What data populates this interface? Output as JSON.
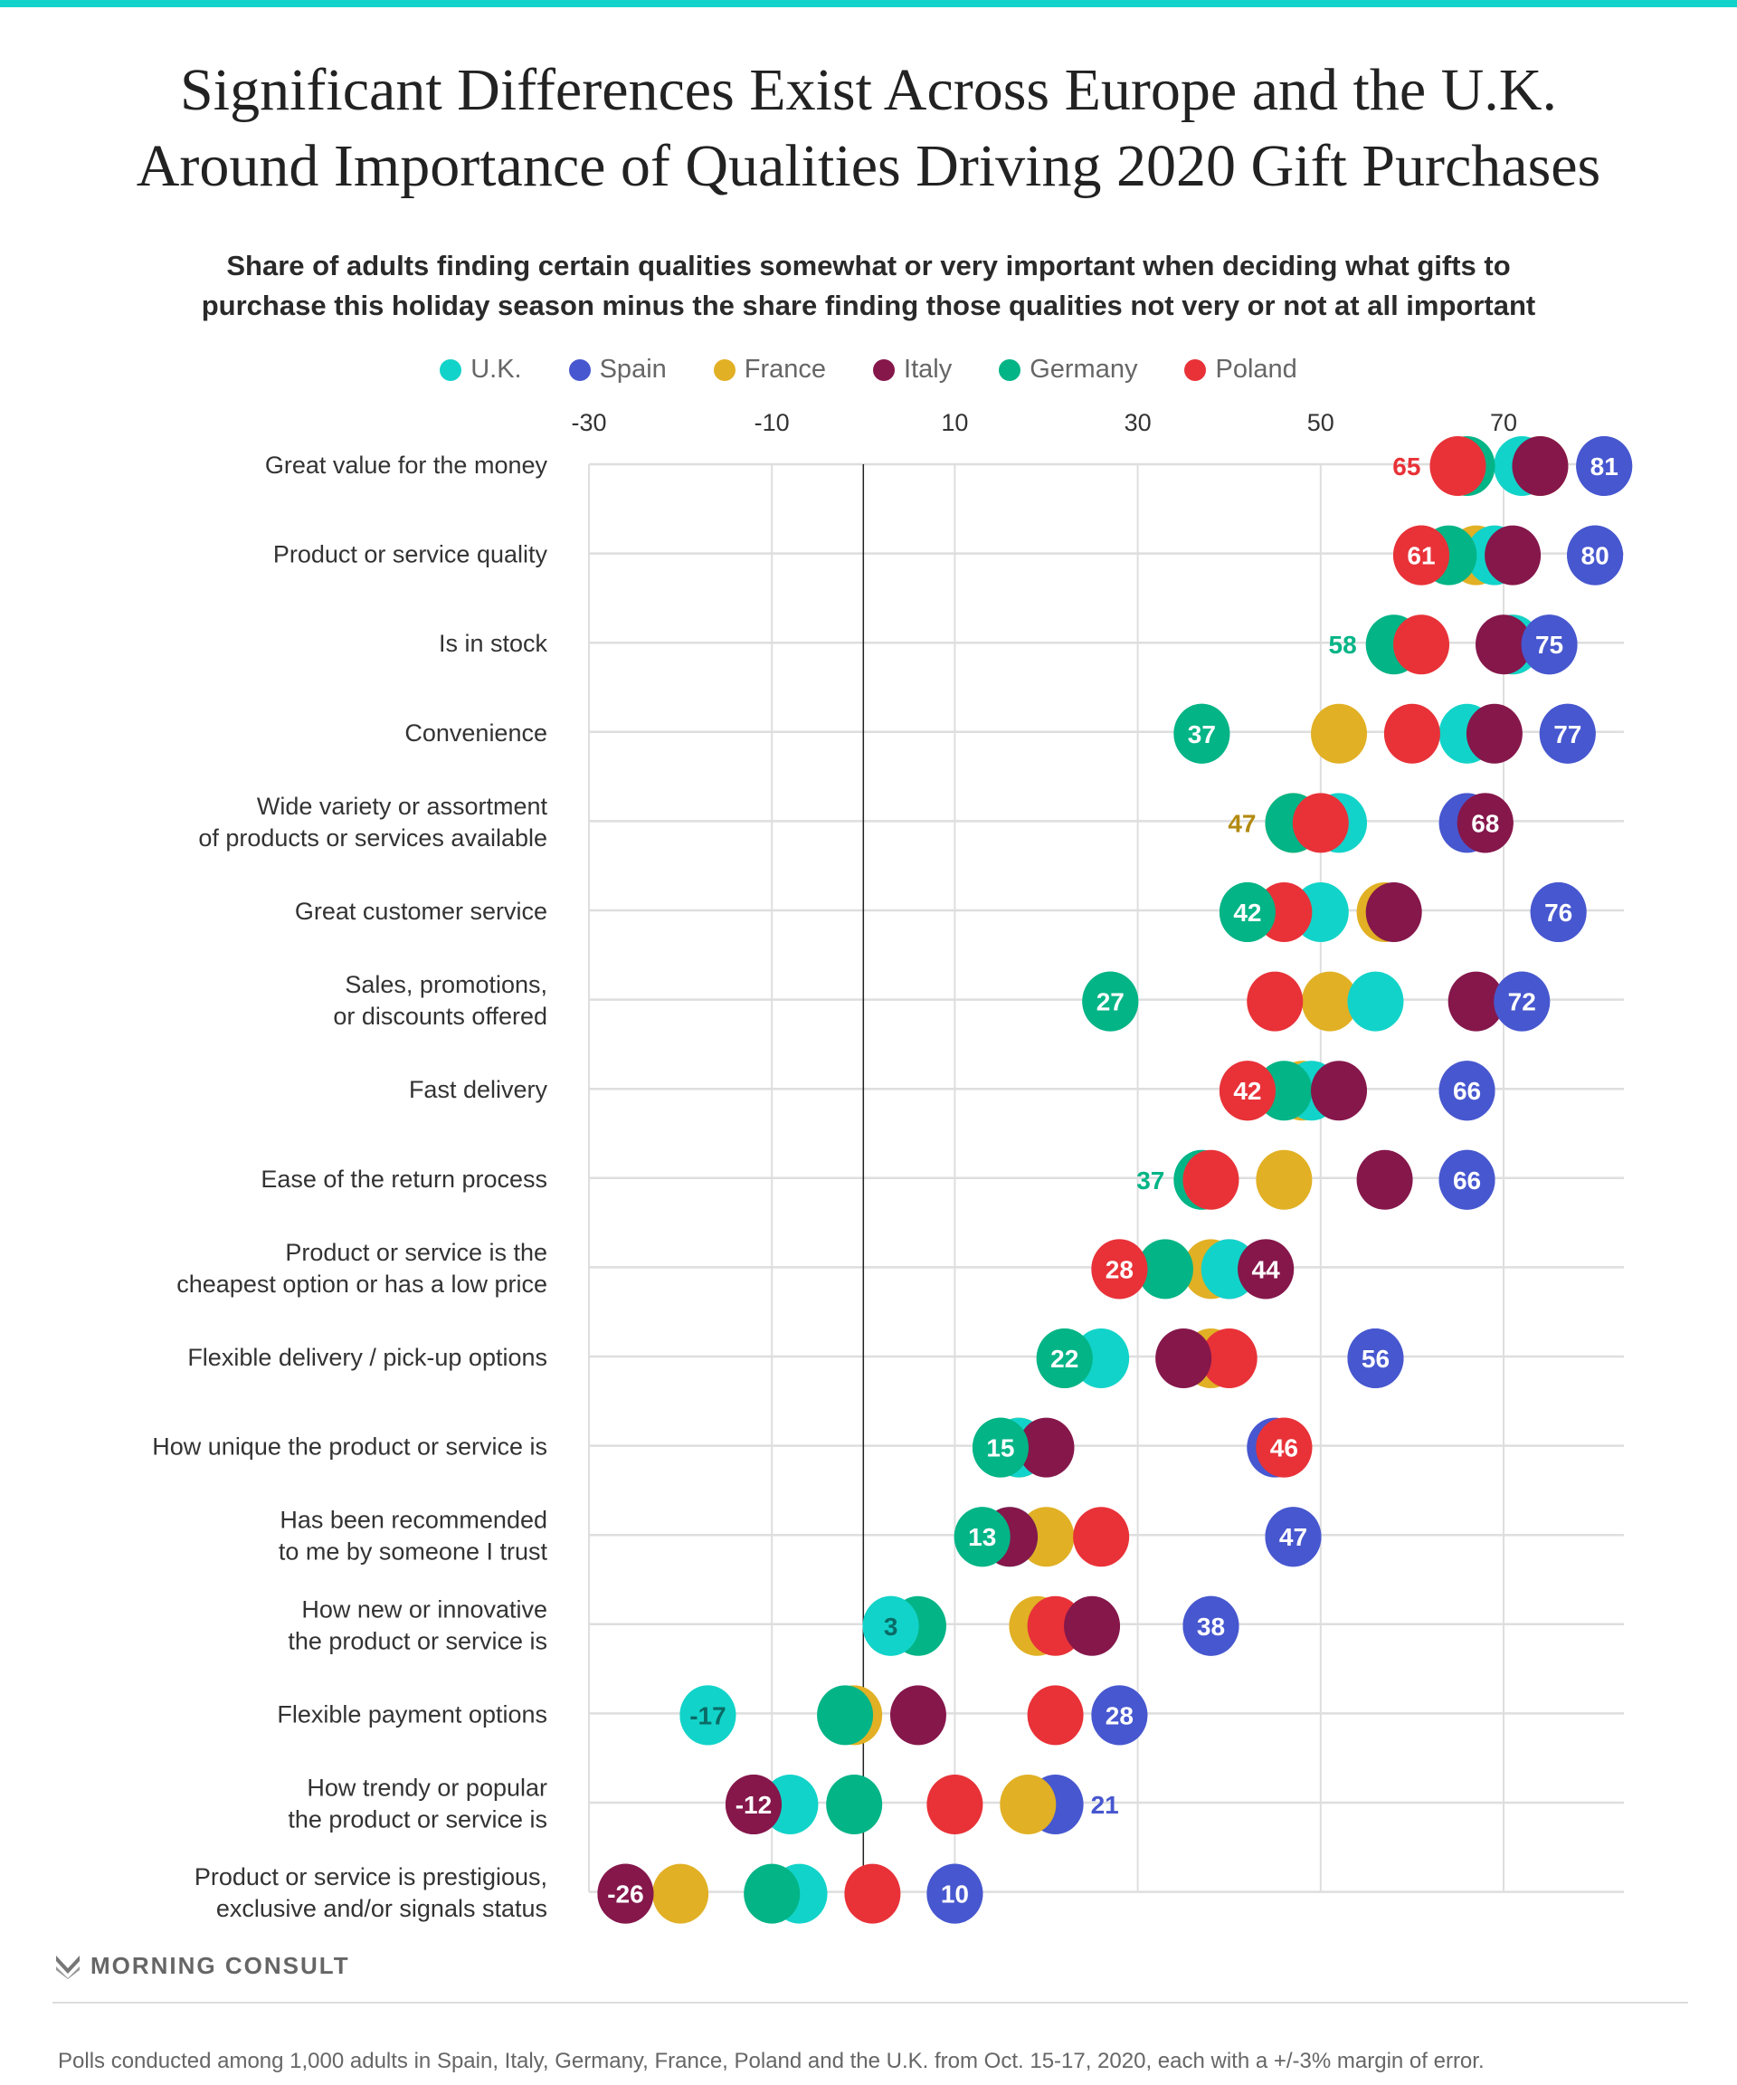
{
  "header": {
    "title_line1": "Significant Differences Exist Across Europe and the U.K.",
    "title_line2": "Around Importance of Qualities Driving 2020 Gift Purchases",
    "subtitle_line1": "Share of adults finding certain qualities somewhat or very important when deciding what gifts to",
    "subtitle_line2": "purchase this holiday season minus the share finding those qualities not very or not at all important"
  },
  "legend": [
    {
      "name": "U.K.",
      "color": "#12d3c9"
    },
    {
      "name": "Spain",
      "color": "#4757cf"
    },
    {
      "name": "France",
      "color": "#e1b024"
    },
    {
      "name": "Italy",
      "color": "#85174b"
    },
    {
      "name": "Germany",
      "color": "#03b486"
    },
    {
      "name": "Poland",
      "color": "#e83238"
    }
  ],
  "chart_data": {
    "type": "scatter",
    "title": "Significant Differences Exist Across Europe and the U.K. Around Importance of Qualities Driving 2020 Gift Purchases",
    "xlabel": "",
    "ylabel": "",
    "xlim": [
      -30,
      80
    ],
    "xticks": [
      -30,
      -10,
      10,
      30,
      50,
      70
    ],
    "grid": true,
    "legend_position": "top",
    "categories": [
      [
        "Great value for the money"
      ],
      [
        "Product or service quality"
      ],
      [
        "Is in stock"
      ],
      [
        "Convenience"
      ],
      [
        "Wide variety or assortment",
        "of products or services available"
      ],
      [
        "Great customer service"
      ],
      [
        "Sales, promotions,",
        "or discounts offered"
      ],
      [
        "Fast delivery"
      ],
      [
        "Ease of the return process"
      ],
      [
        "Product or service is the",
        "cheapest option or has a low price"
      ],
      [
        "Flexible delivery / pick-up options"
      ],
      [
        "How unique the product or service is"
      ],
      [
        "Has been recommended",
        "to me by someone I trust"
      ],
      [
        "How new or innovative",
        "the product or service is"
      ],
      [
        "Flexible payment options"
      ],
      [
        "How trendy or popular",
        "the product or service is"
      ],
      [
        "Product or service is prestigious,",
        "exclusive and/or signals status"
      ]
    ],
    "series": [
      {
        "name": "U.K.",
        "values": [
          72,
          69,
          71,
          66,
          52,
          50,
          56,
          49,
          37,
          40,
          26,
          17,
          16,
          3,
          -17,
          -8,
          -7
        ]
      },
      {
        "name": "France",
        "values": [
          74,
          67,
          71,
          52,
          47,
          57,
          51,
          48,
          46,
          38,
          38,
          17,
          20,
          19,
          -1,
          18,
          -20
        ]
      },
      {
        "name": "Germany",
        "values": [
          66,
          64,
          58,
          37,
          47,
          42,
          27,
          46,
          37,
          33,
          22,
          15,
          13,
          6,
          -2,
          -1,
          -10
        ]
      },
      {
        "name": "Poland",
        "values": [
          65,
          61,
          61,
          60,
          50,
          46,
          45,
          42,
          38,
          28,
          40,
          46,
          26,
          21,
          21,
          10,
          1
        ]
      },
      {
        "name": "Italy",
        "values": [
          74,
          71,
          70,
          69,
          68,
          58,
          67,
          52,
          57,
          44,
          35,
          20,
          16,
          25,
          6,
          -12,
          -26
        ]
      },
      {
        "name": "Spain",
        "values": [
          81,
          80,
          75,
          77,
          66,
          76,
          72,
          66,
          66,
          40,
          56,
          45,
          47,
          38,
          28,
          21,
          10
        ]
      }
    ],
    "labels": [
      {
        "row": 0,
        "series": "Poland",
        "text": "65",
        "position": "outside"
      },
      {
        "row": 0,
        "series": "Spain",
        "text": "81",
        "position": "inside"
      },
      {
        "row": 1,
        "series": "Poland",
        "text": "61",
        "position": "inside"
      },
      {
        "row": 1,
        "series": "Spain",
        "text": "80",
        "position": "inside"
      },
      {
        "row": 2,
        "series": "Germany",
        "text": "58",
        "position": "outside"
      },
      {
        "row": 2,
        "series": "Spain",
        "text": "75",
        "position": "inside"
      },
      {
        "row": 3,
        "series": "Germany",
        "text": "37",
        "position": "inside"
      },
      {
        "row": 3,
        "series": "Spain",
        "text": "77",
        "position": "inside"
      },
      {
        "row": 4,
        "series": "France",
        "text": "47",
        "position": "outside"
      },
      {
        "row": 4,
        "series": "Italy",
        "text": "68",
        "position": "inside"
      },
      {
        "row": 5,
        "series": "Germany",
        "text": "42",
        "position": "inside"
      },
      {
        "row": 5,
        "series": "Spain",
        "text": "76",
        "position": "inside"
      },
      {
        "row": 6,
        "series": "Germany",
        "text": "27",
        "position": "inside"
      },
      {
        "row": 6,
        "series": "Spain",
        "text": "72",
        "position": "inside"
      },
      {
        "row": 7,
        "series": "Poland",
        "text": "42",
        "position": "inside"
      },
      {
        "row": 7,
        "series": "Spain",
        "text": "66",
        "position": "inside"
      },
      {
        "row": 8,
        "series": "Germany",
        "text": "37",
        "position": "outside"
      },
      {
        "row": 8,
        "series": "Spain",
        "text": "66",
        "position": "inside"
      },
      {
        "row": 9,
        "series": "Poland",
        "text": "28",
        "position": "inside"
      },
      {
        "row": 9,
        "series": "Italy",
        "text": "44",
        "position": "inside"
      },
      {
        "row": 10,
        "series": "Germany",
        "text": "22",
        "position": "inside"
      },
      {
        "row": 10,
        "series": "Spain",
        "text": "56",
        "position": "inside"
      },
      {
        "row": 11,
        "series": "Germany",
        "text": "15",
        "position": "inside"
      },
      {
        "row": 11,
        "series": "Poland",
        "text": "46",
        "position": "inside"
      },
      {
        "row": 12,
        "series": "Germany",
        "text": "13",
        "position": "inside"
      },
      {
        "row": 12,
        "series": "Spain",
        "text": "47",
        "position": "inside"
      },
      {
        "row": 13,
        "series": "U.K.",
        "text": "3",
        "position": "inside-dark"
      },
      {
        "row": 13,
        "series": "Spain",
        "text": "38",
        "position": "inside"
      },
      {
        "row": 14,
        "series": "U.K.",
        "text": "-17",
        "position": "inside-dark"
      },
      {
        "row": 14,
        "series": "Spain",
        "text": "28",
        "position": "inside"
      },
      {
        "row": 15,
        "series": "Italy",
        "text": "-12",
        "position": "inside"
      },
      {
        "row": 15,
        "series": "Spain",
        "text": "21",
        "position": "outside-right"
      },
      {
        "row": 16,
        "series": "Italy",
        "text": "-26",
        "position": "inside"
      },
      {
        "row": 16,
        "series": "Spain",
        "text": "10",
        "position": "inside"
      }
    ]
  },
  "footer": {
    "brand": "MORNING CONSULT",
    "note": "Polls conducted among 1,000 adults in Spain, Italy, Germany, France, Poland and the U.K. from Oct. 15-17, 2020, each with a +/-3% margin of error."
  }
}
